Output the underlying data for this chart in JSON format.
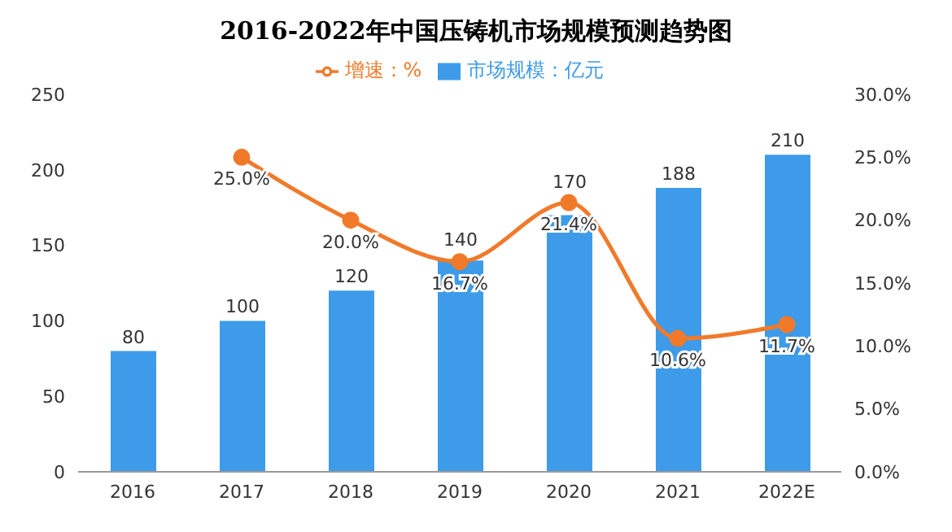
{
  "chart_data": {
    "type": "bar",
    "title": "2016-2022年中国压铸机市场规模预测趋势图",
    "categories": [
      "2016",
      "2017",
      "2018",
      "2019",
      "2020",
      "2021",
      "2022E"
    ],
    "series": [
      {
        "name": "市场规模：亿元",
        "color": "#3d9be9",
        "values": [
          80,
          100,
          120,
          140,
          170,
          188,
          210
        ],
        "value_labels": [
          "80",
          "100",
          "120",
          "140",
          "170",
          "188",
          "210"
        ]
      },
      {
        "name": "增速：%",
        "type": "line",
        "axis": "y2",
        "color": "#f07a2a",
        "values": [
          null,
          25.0,
          20.0,
          16.7,
          21.4,
          10.6,
          11.7
        ],
        "value_labels": [
          null,
          "25.0%",
          "20.0%",
          "16.7%",
          "21.4%",
          "10.6%",
          "11.7%"
        ]
      }
    ],
    "ylim": [
      0,
      250
    ],
    "yticks": [
      0,
      50,
      100,
      150,
      200,
      250
    ],
    "y2lim": [
      0,
      30
    ],
    "y2ticks": [
      {
        "value": 0,
        "label": "0.0%"
      },
      {
        "value": 5,
        "label": "5.0%"
      },
      {
        "value": 10,
        "label": "10.0%"
      },
      {
        "value": 15,
        "label": "15.0%"
      },
      {
        "value": 20,
        "label": "20.0%"
      },
      {
        "value": 25,
        "label": "25.0%"
      },
      {
        "value": 30,
        "label": "30.0%"
      }
    ],
    "legend": "top",
    "marker": "circle",
    "grid": false
  }
}
